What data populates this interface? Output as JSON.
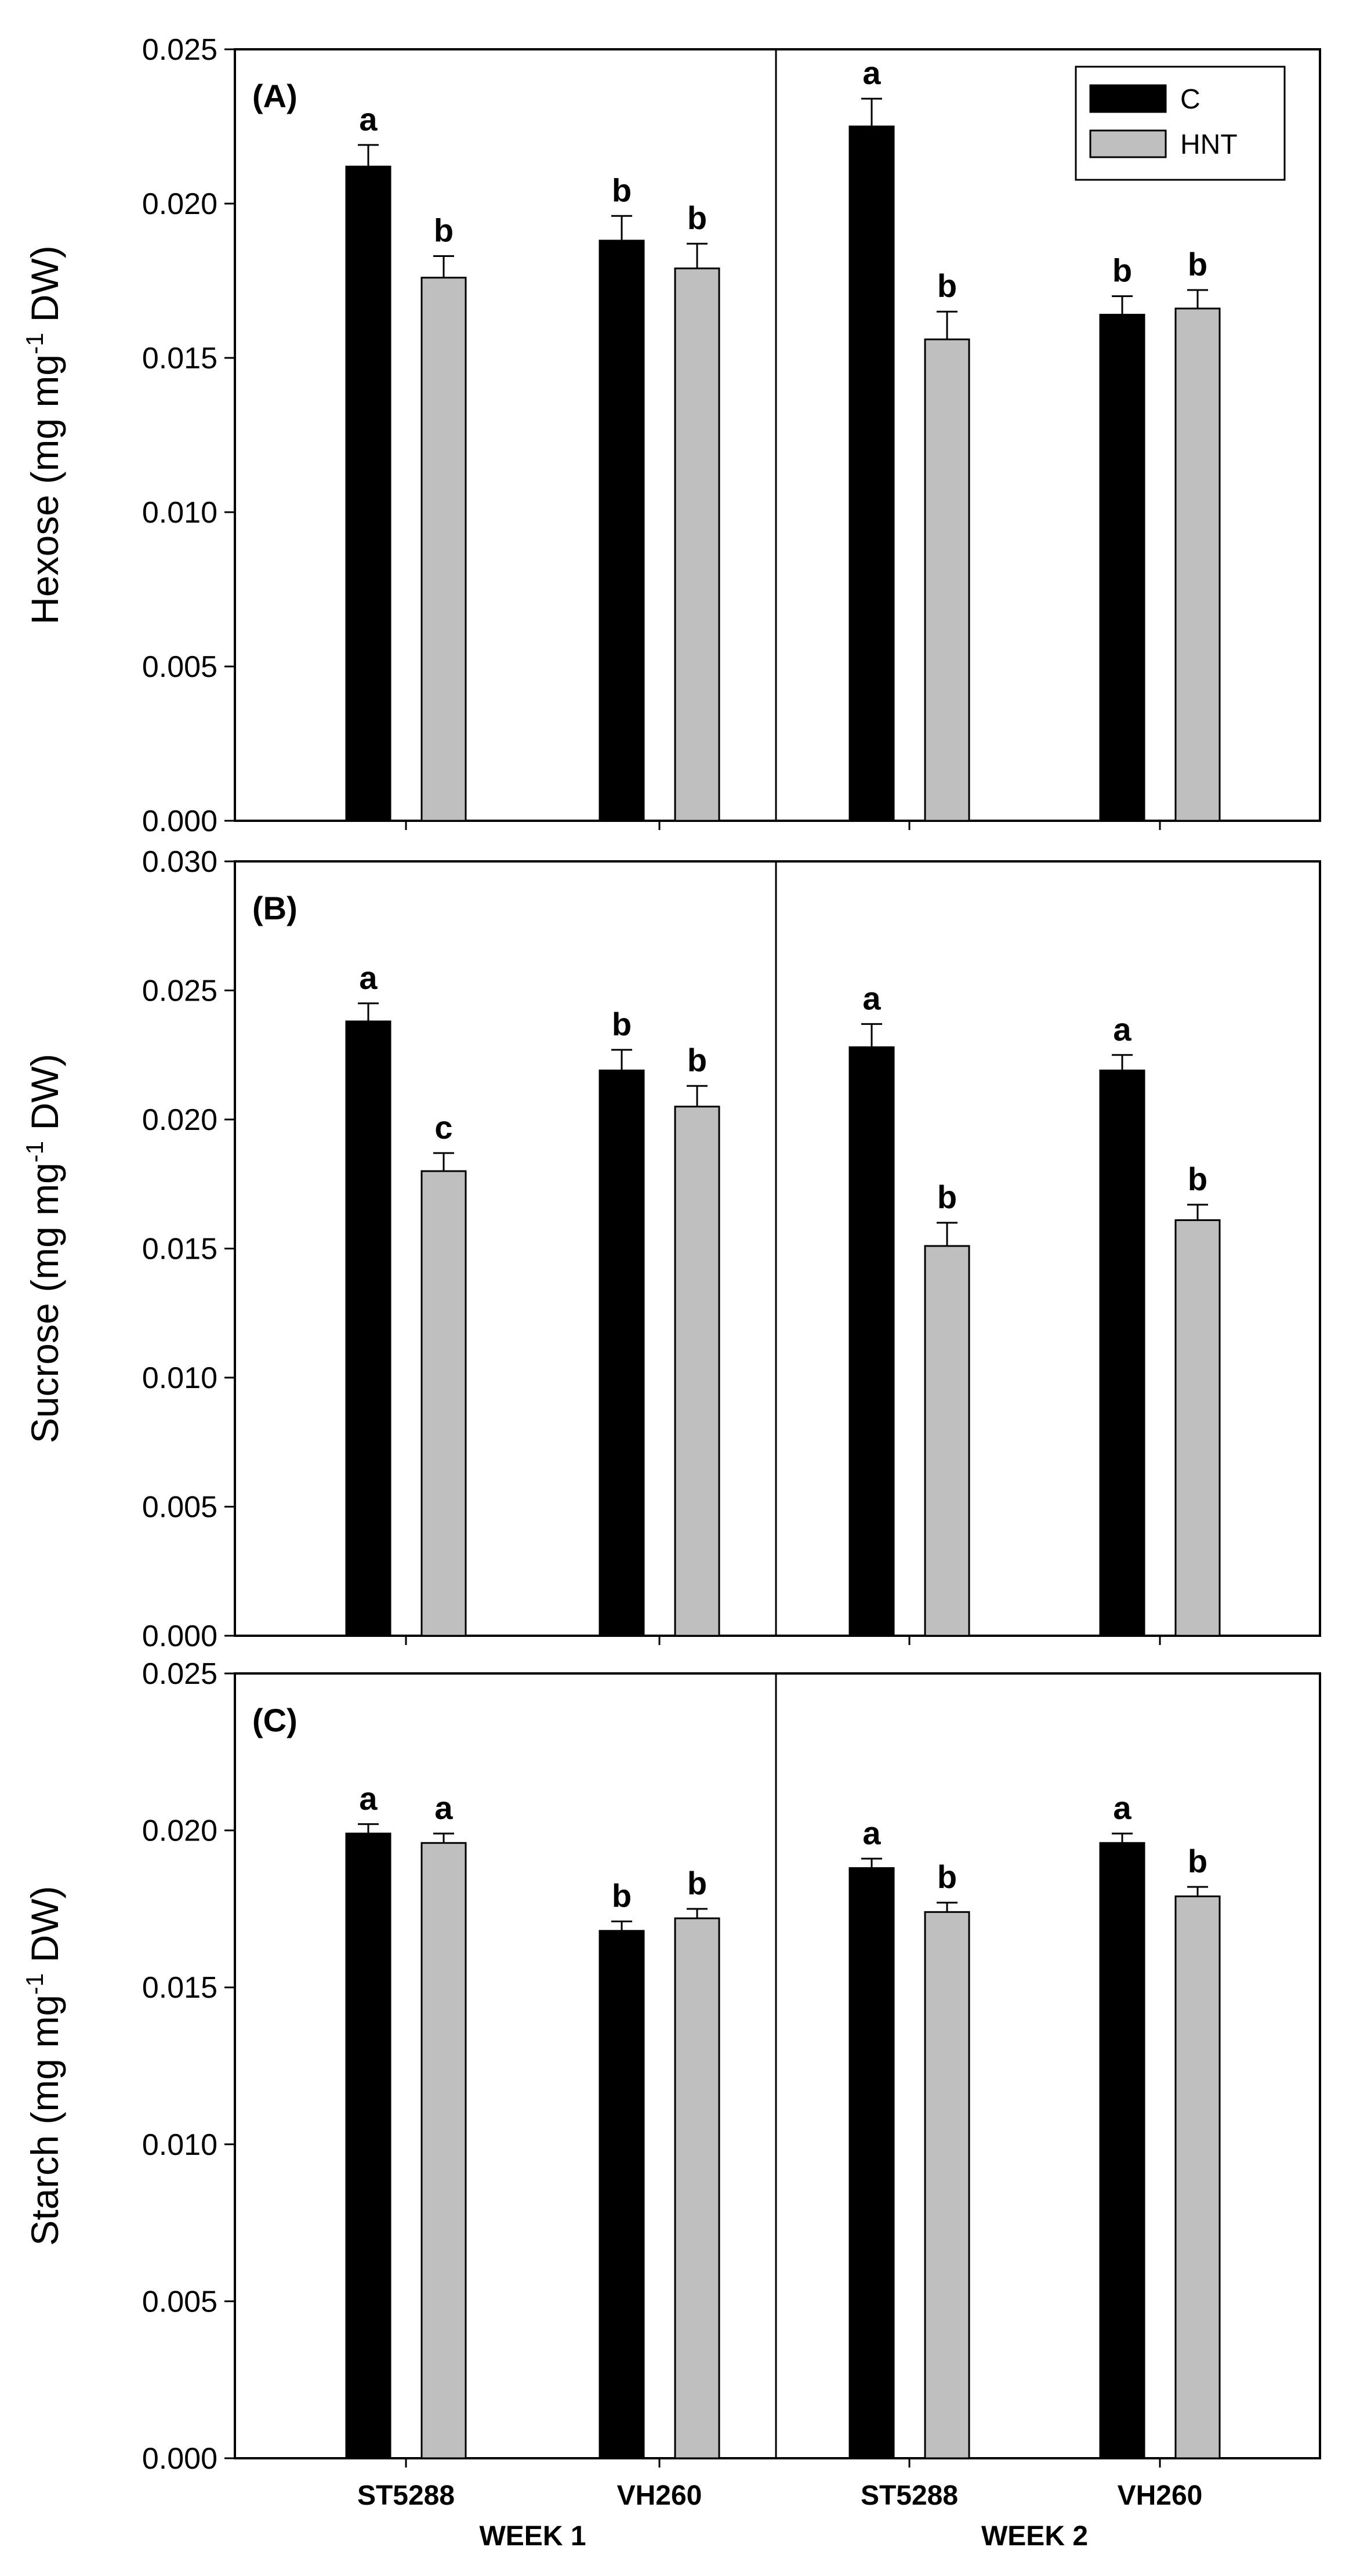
{
  "chart_data": [
    {
      "type": "bar",
      "panel_label": "(A)",
      "ylabel": "Hexose (mg mg-1 DW)",
      "ylabel_main": "Hexose (mg mg",
      "ylabel_sup": "-1",
      "ylabel_end": " DW)",
      "ylim": [
        0,
        0.025
      ],
      "yticks": [
        "0.000",
        "0.005",
        "0.010",
        "0.015",
        "0.020",
        "0.025"
      ],
      "weeks": [
        "WEEK 1",
        "WEEK 2"
      ],
      "categories": [
        "ST5288",
        "VH260",
        "ST5288",
        "VH260"
      ],
      "series": [
        {
          "name": "C",
          "color": "#000000",
          "values": [
            0.0212,
            0.0188,
            0.0225,
            0.0164
          ],
          "errors": [
            0.0007,
            0.0008,
            0.0009,
            0.0006
          ],
          "labels": [
            "a",
            "b",
            "a",
            "b"
          ]
        },
        {
          "name": "HNT",
          "color": "#bfbfbf",
          "values": [
            0.0176,
            0.0179,
            0.0156,
            0.0166
          ],
          "errors": [
            0.0007,
            0.0008,
            0.0009,
            0.0006
          ],
          "labels": [
            "b",
            "b",
            "b",
            "b"
          ]
        }
      ],
      "legend": {
        "placement": "top-right",
        "entries": [
          "C",
          "HNT"
        ]
      }
    },
    {
      "type": "bar",
      "panel_label": "(B)",
      "ylabel": "Sucrose (mg mg-1 DW)",
      "ylabel_main": "Sucrose (mg mg",
      "ylabel_sup": "-1",
      "ylabel_end": " DW)",
      "ylim": [
        0,
        0.03
      ],
      "yticks": [
        "0.000",
        "0.005",
        "0.010",
        "0.015",
        "0.020",
        "0.025",
        "0.030"
      ],
      "weeks": [
        "WEEK 1",
        "WEEK 2"
      ],
      "categories": [
        "ST5288",
        "VH260",
        "ST5288",
        "VH260"
      ],
      "series": [
        {
          "name": "C",
          "color": "#000000",
          "values": [
            0.0238,
            0.0219,
            0.0228,
            0.0219
          ],
          "errors": [
            0.0007,
            0.0008,
            0.0009,
            0.0006
          ],
          "labels": [
            "a",
            "b",
            "a",
            "a"
          ]
        },
        {
          "name": "HNT",
          "color": "#bfbfbf",
          "values": [
            0.018,
            0.0205,
            0.0151,
            0.0161
          ],
          "errors": [
            0.0007,
            0.0008,
            0.0009,
            0.0006
          ],
          "labels": [
            "c",
            "b",
            "b",
            "b"
          ]
        }
      ]
    },
    {
      "type": "bar",
      "panel_label": "(C)",
      "ylabel": "Starch (mg mg-1 DW)",
      "ylabel_main": "Starch (mg mg",
      "ylabel_sup": "-1",
      "ylabel_end": " DW)",
      "ylim": [
        0,
        0.025
      ],
      "yticks": [
        "0.000",
        "0.005",
        "0.010",
        "0.015",
        "0.020",
        "0.025"
      ],
      "weeks": [
        "WEEK 1",
        "WEEK 2"
      ],
      "categories": [
        "ST5288",
        "VH260",
        "ST5288",
        "VH260"
      ],
      "series": [
        {
          "name": "C",
          "color": "#000000",
          "values": [
            0.0199,
            0.0168,
            0.0188,
            0.0196
          ],
          "errors": [
            0.0003,
            0.0003,
            0.0003,
            0.0003
          ],
          "labels": [
            "a",
            "b",
            "a",
            "a"
          ]
        },
        {
          "name": "HNT",
          "color": "#bfbfbf",
          "values": [
            0.0196,
            0.0172,
            0.0174,
            0.0179
          ],
          "errors": [
            0.0003,
            0.0003,
            0.0003,
            0.0003
          ],
          "labels": [
            "a",
            "b",
            "b",
            "b"
          ]
        }
      ]
    }
  ]
}
